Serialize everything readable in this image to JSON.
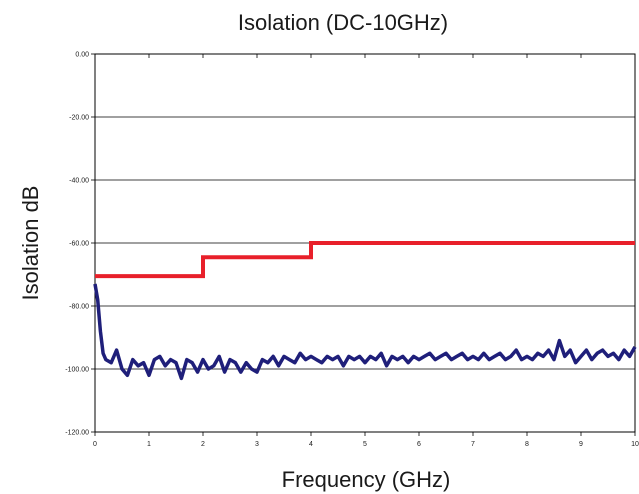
{
  "chart_data": {
    "type": "line",
    "title": "Isolation (DC-10GHz)",
    "xlabel": "Frequency (GHz)",
    "ylabel": "Isolation dB",
    "xlim": [
      0,
      10
    ],
    "ylim": [
      -120,
      0
    ],
    "x_ticks": [
      "0",
      "1",
      "2",
      "3",
      "4",
      "5",
      "6",
      "7",
      "8",
      "9",
      "10"
    ],
    "y_ticks": [
      "0.00",
      "-20.00",
      "-40.00",
      "-60.00",
      "-80.00",
      "-100.00",
      "-120.00"
    ],
    "grid": "horizontal",
    "legend": "none",
    "series": [
      {
        "color": "#e8202a",
        "style": "step",
        "x": [
          0,
          2,
          2,
          4,
          4,
          10
        ],
        "y": [
          -70.5,
          -70.5,
          -64.5,
          -64.5,
          -60,
          -60
        ]
      },
      {
        "color": "#1f1f7a",
        "style": "line",
        "x": [
          0,
          0.05,
          0.1,
          0.15,
          0.2,
          0.3,
          0.4,
          0.5,
          0.6,
          0.7,
          0.8,
          0.9,
          1.0,
          1.1,
          1.2,
          1.3,
          1.4,
          1.5,
          1.6,
          1.7,
          1.8,
          1.9,
          2.0,
          2.1,
          2.2,
          2.3,
          2.4,
          2.5,
          2.6,
          2.7,
          2.8,
          2.9,
          3.0,
          3.1,
          3.2,
          3.3,
          3.4,
          3.5,
          3.6,
          3.7,
          3.8,
          3.9,
          4.0,
          4.1,
          4.2,
          4.3,
          4.4,
          4.5,
          4.6,
          4.7,
          4.8,
          4.9,
          5.0,
          5.1,
          5.2,
          5.3,
          5.4,
          5.5,
          5.6,
          5.7,
          5.8,
          5.9,
          6.0,
          6.1,
          6.2,
          6.3,
          6.4,
          6.5,
          6.6,
          6.7,
          6.8,
          6.9,
          7.0,
          7.1,
          7.2,
          7.3,
          7.4,
          7.5,
          7.6,
          7.7,
          7.8,
          7.9,
          8.0,
          8.1,
          8.2,
          8.3,
          8.4,
          8.5,
          8.6,
          8.7,
          8.8,
          8.9,
          9.0,
          9.1,
          9.2,
          9.3,
          9.4,
          9.5,
          9.6,
          9.7,
          9.8,
          9.9,
          10.0
        ],
        "y": [
          -73,
          -78,
          -88,
          -95,
          -97,
          -98,
          -94,
          -100,
          -102,
          -97,
          -99,
          -98,
          -102,
          -97,
          -96,
          -99,
          -97,
          -98,
          -103,
          -97,
          -98,
          -101,
          -97,
          -100,
          -99,
          -96,
          -101,
          -97,
          -98,
          -101,
          -98,
          -100,
          -101,
          -97,
          -98,
          -96,
          -99,
          -96,
          -97,
          -98,
          -95,
          -97,
          -96,
          -97,
          -98,
          -96,
          -97,
          -96,
          -99,
          -96,
          -97,
          -96,
          -98,
          -96,
          -97,
          -95,
          -99,
          -96,
          -97,
          -96,
          -98,
          -96,
          -97,
          -96,
          -95,
          -97,
          -96,
          -95,
          -97,
          -96,
          -95,
          -97,
          -96,
          -97,
          -95,
          -97,
          -96,
          -95,
          -97,
          -96,
          -94,
          -97,
          -96,
          -97,
          -95,
          -96,
          -94,
          -97,
          -91,
          -96,
          -94,
          -98,
          -96,
          -94,
          -97,
          -95,
          -94,
          -96,
          -95,
          -97,
          -94,
          -96,
          -93
        ]
      }
    ]
  }
}
